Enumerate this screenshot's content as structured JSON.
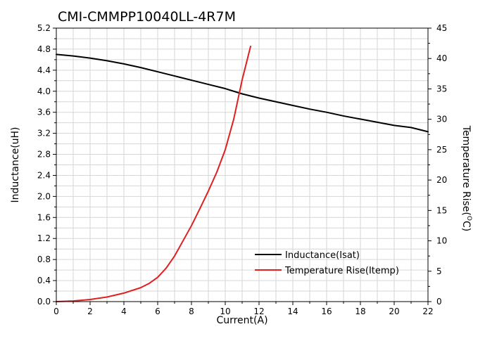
{
  "chart_data": {
    "type": "line",
    "title": "CMI-CMMPP10040LL-4R7M",
    "xlabel": "Current(A)",
    "ylabel": "Inductance(uH)",
    "y2label_main": "Temperature Rise(",
    "y2label_sup": "O",
    "y2label_tail": "C)",
    "xlim": [
      0,
      22
    ],
    "ylim": [
      0,
      5.2
    ],
    "y2lim": [
      0,
      45
    ],
    "x_ticks": [
      0,
      2,
      4,
      6,
      8,
      10,
      12,
      14,
      16,
      18,
      20,
      22
    ],
    "y_ticks": [
      "0.0",
      "0.4",
      "0.8",
      "1.2",
      "1.6",
      "2.0",
      "2.4",
      "2.8",
      "3.2",
      "3.6",
      "4.0",
      "4.4",
      "4.8",
      "5.2"
    ],
    "y2_ticks": [
      0,
      5,
      10,
      15,
      20,
      25,
      30,
      35,
      40,
      45
    ],
    "grid": true,
    "legend_position": "lower-right",
    "series": [
      {
        "name": "Inductance(Isat)",
        "axis": "left",
        "color": "#000000",
        "points": [
          [
            0,
            4.7
          ],
          [
            1,
            4.67
          ],
          [
            2,
            4.63
          ],
          [
            3,
            4.58
          ],
          [
            4,
            4.52
          ],
          [
            5,
            4.45
          ],
          [
            6,
            4.37
          ],
          [
            7,
            4.29
          ],
          [
            8,
            4.21
          ],
          [
            9,
            4.13
          ],
          [
            10,
            4.05
          ],
          [
            11,
            3.95
          ],
          [
            12,
            3.87
          ],
          [
            13,
            3.8
          ],
          [
            14,
            3.73
          ],
          [
            15,
            3.66
          ],
          [
            16,
            3.6
          ],
          [
            17,
            3.53
          ],
          [
            18,
            3.47
          ],
          [
            19,
            3.41
          ],
          [
            20,
            3.35
          ],
          [
            21,
            3.31
          ],
          [
            22,
            3.23
          ]
        ]
      },
      {
        "name": "Temperature Rise(Itemp)",
        "axis": "right",
        "color": "#e02020",
        "points": [
          [
            0,
            0
          ],
          [
            1,
            0.1
          ],
          [
            2,
            0.35
          ],
          [
            3,
            0.75
          ],
          [
            4,
            1.4
          ],
          [
            5,
            2.3
          ],
          [
            5.5,
            3.0
          ],
          [
            6,
            4.0
          ],
          [
            6.5,
            5.5
          ],
          [
            7,
            7.5
          ],
          [
            7.5,
            10.0
          ],
          [
            8,
            12.5
          ],
          [
            8.5,
            15.3
          ],
          [
            9,
            18.2
          ],
          [
            9.5,
            21.3
          ],
          [
            10,
            25.0
          ],
          [
            10.5,
            30.0
          ],
          [
            11,
            36.5
          ],
          [
            11.5,
            42.0
          ]
        ]
      }
    ]
  }
}
